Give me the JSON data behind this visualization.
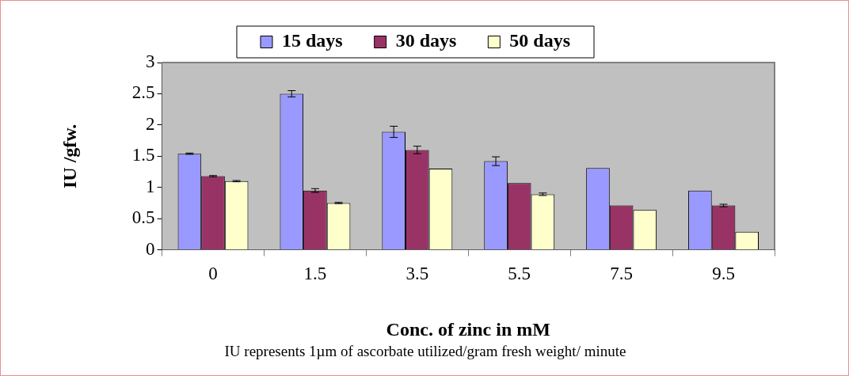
{
  "chart_data": {
    "type": "bar",
    "xlabel": "Conc. of zinc in mM",
    "ylabel": "IU /gfw.",
    "annotations": [
      "IU represents 1µm of ascorbate utilized/gram fresh weight/ minute"
    ],
    "categories": [
      "0",
      "1.5",
      "3.5",
      "5.5",
      "7.5",
      "9.5"
    ],
    "series": [
      {
        "name": "15 days",
        "color": "#9999ff",
        "values": [
          1.54,
          2.5,
          1.89,
          1.42,
          1.31,
          0.95
        ],
        "errors": [
          0.01,
          0.05,
          0.09,
          0.07,
          null,
          null
        ]
      },
      {
        "name": "30 days",
        "color": "#993366",
        "values": [
          1.18,
          0.95,
          1.6,
          1.07,
          0.71,
          0.71
        ],
        "errors": [
          0.01,
          0.03,
          0.06,
          null,
          null,
          0.02
        ]
      },
      {
        "name": "50 days",
        "color": "#ffffcc",
        "values": [
          1.1,
          0.75,
          1.3,
          0.89,
          0.64,
          0.29
        ],
        "errors": [
          0.01,
          0.01,
          null,
          0.02,
          null,
          null
        ]
      }
    ],
    "ylim": [
      0,
      3
    ],
    "yticks": [
      0,
      0.5,
      1,
      1.5,
      2,
      2.5,
      3
    ],
    "legend": "top"
  }
}
